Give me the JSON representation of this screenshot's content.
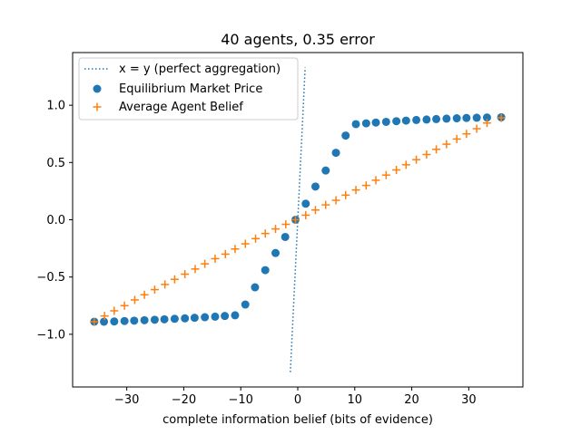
{
  "chart_data": {
    "type": "scatter",
    "title": "40 agents, 0.35 error",
    "xlabel": "complete information belief (bits of evidence)",
    "ylabel": "",
    "xlim": [
      -39.5,
      39.5
    ],
    "ylim": [
      -1.46,
      1.46
    ],
    "xticks": [
      -30,
      -20,
      -10,
      0,
      10,
      20,
      30
    ],
    "yticks": [
      -1.0,
      -0.5,
      0.0,
      0.5,
      1.0
    ],
    "xtick_labels": [
      "−30",
      "−20",
      "−10",
      "0",
      "10",
      "20",
      "30"
    ],
    "ytick_labels": [
      "−1.0",
      "−0.5",
      "0.0",
      "0.5",
      "1.0"
    ],
    "grid": false,
    "legend_position": "upper-left",
    "series": [
      {
        "name": "x = y (perfect aggregation)",
        "kind": "line",
        "style": "dotted",
        "color": "#1f77b4",
        "x": [
          -1.3,
          1.3
        ],
        "y": [
          -1.33,
          1.33
        ]
      },
      {
        "name": "Equilibrium Market Price",
        "kind": "scatter",
        "marker": "circle",
        "color": "#1f77b4",
        "x": [
          -35.7,
          -34,
          -32.2,
          -30.4,
          -28.7,
          -26.9,
          -25.1,
          -23.4,
          -21.6,
          -19.8,
          -18.1,
          -16.3,
          -14.5,
          -12.8,
          -11,
          -9.2,
          -7.5,
          -5.7,
          -3.9,
          -2.2,
          -0.4,
          1.4,
          3.1,
          4.9,
          6.7,
          8.4,
          10.2,
          12,
          13.7,
          15.5,
          17.3,
          19,
          20.8,
          22.6,
          24.3,
          26.1,
          27.9,
          29.6,
          31.4,
          33.2,
          35.7
        ],
        "y": [
          -0.89,
          -0.89,
          -0.888,
          -0.884,
          -0.881,
          -0.877,
          -0.873,
          -0.869,
          -0.865,
          -0.861,
          -0.856,
          -0.851,
          -0.846,
          -0.84,
          -0.834,
          -0.74,
          -0.59,
          -0.44,
          -0.29,
          -0.15,
          0.0,
          0.14,
          0.29,
          0.43,
          0.585,
          0.735,
          0.835,
          0.842,
          0.849,
          0.855,
          0.861,
          0.866,
          0.871,
          0.875,
          0.879,
          0.883,
          0.886,
          0.889,
          0.891,
          0.893,
          0.895
        ]
      },
      {
        "name": "Average Agent Belief",
        "kind": "scatter",
        "marker": "plus",
        "color": "#ff7f0e",
        "x": [
          -35.7,
          -33.9,
          -32.2,
          -30.4,
          -28.6,
          -26.9,
          -25.1,
          -23.3,
          -21.6,
          -19.8,
          -18,
          -16.3,
          -14.5,
          -12.7,
          -11,
          -9.2,
          -7.4,
          -5.7,
          -3.9,
          -2.1,
          -0.4,
          1.4,
          3.1,
          4.9,
          6.7,
          8.4,
          10.2,
          12,
          13.7,
          15.5,
          17.3,
          19,
          20.8,
          22.6,
          24.3,
          26.1,
          27.9,
          29.6,
          31.4,
          33.2,
          35.7
        ],
        "y": [
          -0.89,
          -0.84,
          -0.795,
          -0.75,
          -0.7,
          -0.655,
          -0.61,
          -0.565,
          -0.52,
          -0.475,
          -0.43,
          -0.385,
          -0.34,
          -0.3,
          -0.255,
          -0.21,
          -0.165,
          -0.12,
          -0.08,
          -0.04,
          0.0,
          0.04,
          0.085,
          0.13,
          0.17,
          0.215,
          0.26,
          0.3,
          0.345,
          0.39,
          0.435,
          0.48,
          0.525,
          0.57,
          0.615,
          0.66,
          0.705,
          0.75,
          0.795,
          0.845,
          0.89
        ]
      }
    ]
  }
}
